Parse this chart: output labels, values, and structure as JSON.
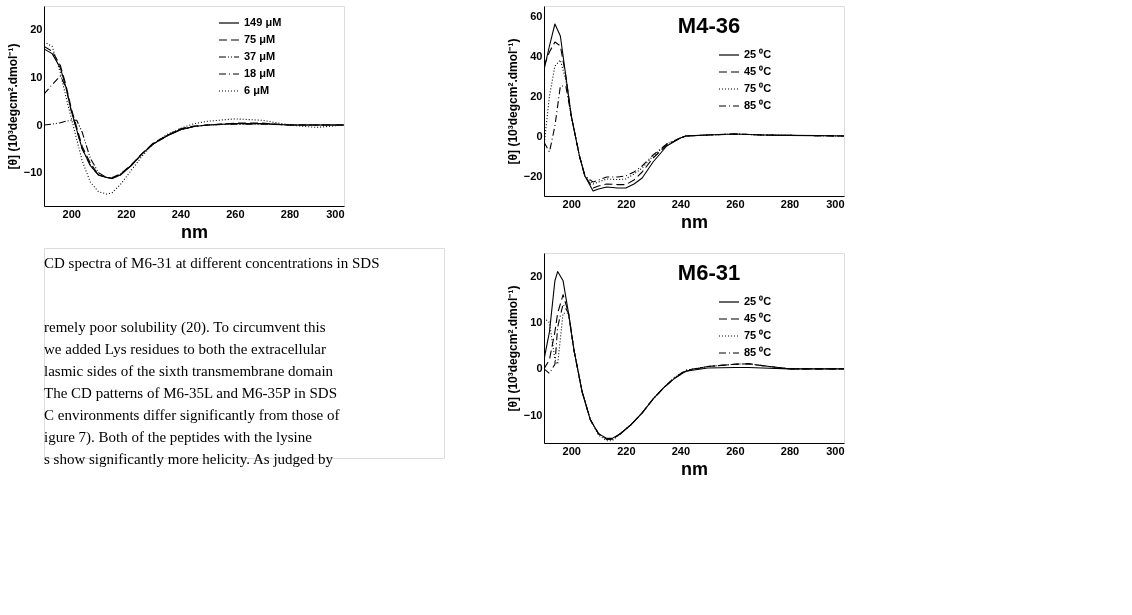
{
  "chart_data": [
    {
      "type": "line",
      "xlabel": "nm",
      "ylabel": "[θ] (10³degcm².dmol⁻¹)",
      "xlim": [
        190,
        300
      ],
      "ylim": [
        -17,
        25
      ],
      "xticks": [
        200,
        220,
        240,
        260,
        280,
        300
      ],
      "yticks": [
        -10,
        0,
        10,
        20
      ],
      "grid": false,
      "legend": "right",
      "x": [
        190,
        193,
        196,
        198,
        200,
        202,
        204,
        207,
        210,
        213,
        215,
        218,
        222,
        226,
        230,
        235,
        240,
        245,
        250,
        260,
        270,
        280,
        290,
        300
      ],
      "series": [
        {
          "name": "149 μM",
          "color": "#000000",
          "line_style": "solid",
          "values": [
            16,
            15,
            12,
            8,
            3,
            -1,
            -5,
            -8.5,
            -10.5,
            -11,
            -11.2,
            -10.5,
            -8.5,
            -6,
            -4,
            -2.3,
            -1,
            -0.3,
            0,
            0.3,
            0.3,
            0,
            0,
            0
          ]
        },
        {
          "name": "75 μM",
          "color": "#000000",
          "line_style": "dashed",
          "values": [
            16.5,
            15.5,
            12.5,
            8.5,
            3.5,
            -0.5,
            -4.5,
            -8,
            -10.5,
            -11,
            -11.2,
            -10.3,
            -8.3,
            -6,
            -3.8,
            -2.2,
            -0.8,
            -0.2,
            0,
            0.4,
            0.4,
            0,
            0,
            0
          ]
        },
        {
          "name": "37 μM",
          "color": "#000000",
          "line_style": "dashdotdot",
          "values": [
            0,
            0.2,
            0.5,
            0.8,
            1,
            1,
            -1.5,
            -7,
            -10,
            -11,
            -11,
            -10.3,
            -8.5,
            -6,
            -4,
            -2.3,
            -1,
            -0.3,
            0,
            0.2,
            0.2,
            0,
            0,
            0
          ]
        },
        {
          "name": "18 μM",
          "color": "#000000",
          "line_style": "dashdot",
          "values": [
            6.5,
            8.5,
            10.3,
            8,
            3,
            -1,
            -5,
            -8.5,
            -10.5,
            -11,
            -11.2,
            -10.5,
            -8.5,
            -6,
            -4,
            -2.3,
            -1,
            -0.3,
            0,
            0.3,
            0.3,
            0,
            0,
            0
          ]
        },
        {
          "name": "6 μM",
          "color": "#000000",
          "line_style": "dotted",
          "values": [
            17.5,
            16.5,
            11,
            6,
            1.5,
            -3,
            -7.5,
            -12,
            -14,
            -14.5,
            -14.2,
            -12.5,
            -9.5,
            -6.5,
            -4,
            -2,
            -0.7,
            0.3,
            0.8,
            1.3,
            1,
            0,
            -0.5,
            0
          ]
        }
      ],
      "annotations": [
        "CD spectra of M6-31 at different concentrations in SDS",
        "remely poor solubility (20). To circumvent this",
        "we added Lys residues to both the extracellular",
        "lasmic sides of the sixth transmembrane domain",
        "The CD patterns of M6-35L and M6-35P in SDS",
        "C environments differ significantly from those of",
        "igure 7). Both of the peptides with the lysine",
        "s show significantly more helicity. As judged by"
      ]
    },
    {
      "type": "line",
      "title": "M4-36",
      "xlabel": "nm",
      "ylabel": "[θ] (10³degcm².dmol⁻¹)",
      "xlim": [
        190,
        300
      ],
      "ylim": [
        -30,
        65
      ],
      "xticks": [
        200,
        220,
        240,
        260,
        280,
        300
      ],
      "yticks": [
        -20,
        0,
        20,
        40,
        60
      ],
      "grid": false,
      "legend": "right",
      "x": [
        190,
        192,
        194,
        196,
        198,
        200,
        203,
        205,
        208,
        210,
        213,
        217,
        220,
        223,
        226,
        230,
        235,
        240,
        242,
        250,
        260,
        270,
        280,
        290,
        300
      ],
      "series": [
        {
          "name": "25 ⁰C",
          "color": "#000000",
          "line_style": "solid",
          "values": [
            33,
            45,
            56,
            50,
            30,
            10,
            -10,
            -20,
            -27.5,
            -26.5,
            -25.5,
            -26,
            -26,
            -24,
            -21,
            -13,
            -5,
            -1,
            0,
            0.5,
            1,
            0.5,
            0.3,
            0.2,
            0
          ]
        },
        {
          "name": "45 ⁰C",
          "color": "#000000",
          "line_style": "dashed",
          "values": [
            35,
            42,
            47,
            45,
            30,
            10,
            -10,
            -20,
            -26,
            -25,
            -24,
            -24.3,
            -24.3,
            -22,
            -18,
            -11,
            -4.5,
            -1,
            0,
            0.5,
            1,
            0.5,
            0.3,
            0.2,
            0
          ]
        },
        {
          "name": "75 ⁰C",
          "color": "#000000",
          "line_style": "dotted",
          "values": [
            -5,
            20,
            35,
            38,
            28,
            10,
            -10,
            -20,
            -24,
            -23,
            -21.5,
            -21.8,
            -21.5,
            -19,
            -16,
            -10,
            -4,
            -1,
            0,
            0.5,
            1,
            0.5,
            0.3,
            0.2,
            0
          ]
        },
        {
          "name": "85 ⁰C",
          "color": "#000000",
          "line_style": "dashdot",
          "values": [
            -3,
            -8,
            5,
            25,
            25,
            10,
            -10,
            -20,
            -23,
            -22,
            -20.5,
            -20.5,
            -20,
            -18,
            -15,
            -9.5,
            -4,
            -1,
            0,
            0.5,
            1,
            0.5,
            0.3,
            0.2,
            0
          ]
        }
      ]
    },
    {
      "type": "line",
      "title": "M6-31",
      "xlabel": "nm",
      "ylabel": "[θ] (10³degcm².dmol⁻¹)",
      "xlim": [
        190,
        300
      ],
      "ylim": [
        -16,
        25
      ],
      "xticks": [
        200,
        220,
        240,
        260,
        280,
        300
      ],
      "yticks": [
        -10,
        0,
        10,
        20
      ],
      "grid": false,
      "legend": "right",
      "x": [
        190,
        192,
        194,
        195,
        197,
        199,
        201,
        204,
        207,
        210,
        213,
        215,
        218,
        222,
        226,
        230,
        234,
        238,
        242,
        250,
        260,
        265,
        270,
        280,
        290,
        300
      ],
      "series": [
        {
          "name": "25 ⁰C",
          "color": "#000000",
          "line_style": "solid",
          "values": [
            2,
            8,
            19,
            21,
            19,
            12,
            4,
            -5,
            -11,
            -14,
            -15,
            -15,
            -14,
            -12,
            -9.5,
            -6.5,
            -4,
            -2,
            -0.5,
            0.2,
            0.3,
            0.3,
            0.2,
            0,
            0,
            0
          ]
        },
        {
          "name": "45 ⁰C",
          "color": "#000000",
          "line_style": "dashed",
          "values": [
            0,
            2,
            8,
            12,
            16,
            12,
            4,
            -5,
            -11,
            -14,
            -15.2,
            -15.2,
            -14,
            -12,
            -9.5,
            -6.5,
            -4,
            -2,
            -0.5,
            0.5,
            1,
            1.1,
            0.7,
            0,
            0,
            0
          ]
        },
        {
          "name": "75 ⁰C",
          "color": "#000000",
          "line_style": "dotted",
          "values": [
            11,
            10,
            2,
            1,
            12,
            12,
            4,
            -5,
            -11,
            -14.3,
            -15.5,
            -15.5,
            -14,
            -12,
            -9.5,
            -6.5,
            -4,
            -1.8,
            -0.3,
            0.5,
            1,
            1.1,
            0.7,
            0,
            0,
            0
          ]
        },
        {
          "name": "85 ⁰C",
          "color": "#000000",
          "line_style": "dashdot",
          "values": [
            0,
            -1,
            1,
            9,
            14,
            12,
            4,
            -5,
            -11,
            -14,
            -15.2,
            -15.2,
            -14,
            -12,
            -9.5,
            -6.5,
            -4,
            -1.8,
            -0.3,
            0.5,
            1,
            1.1,
            0.7,
            0,
            0,
            0
          ]
        }
      ]
    }
  ]
}
